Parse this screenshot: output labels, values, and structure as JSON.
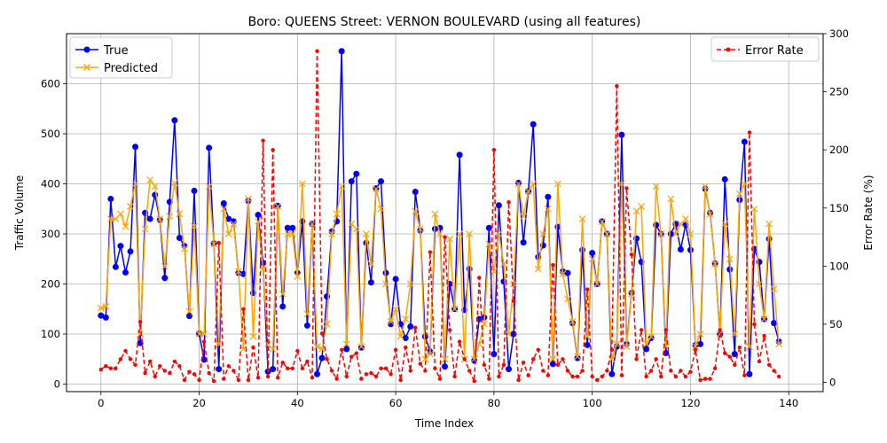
{
  "chart_data": {
    "type": "line",
    "title": "Boro: QUEENS Street: VERNON BOULEVARD (using all features)",
    "xlabel": "Time Index",
    "ylabel": "Traffic Volume",
    "y2label": "Error Rate (%)",
    "xlim": [
      -7,
      147
    ],
    "ylim": [
      -15,
      700
    ],
    "y2lim": [
      -8,
      300
    ],
    "x_ticks": [
      0,
      20,
      40,
      60,
      80,
      100,
      120,
      140
    ],
    "y_ticks": [
      0,
      100,
      200,
      300,
      400,
      500,
      600
    ],
    "y2_ticks": [
      0,
      50,
      100,
      150,
      200,
      250,
      300
    ],
    "grid": true,
    "legend_left": {
      "position": "upper-left",
      "entries": [
        "True",
        "Predicted"
      ]
    },
    "legend_right": {
      "position": "upper-right",
      "entries": [
        "Error Rate"
      ]
    },
    "colors": {
      "true": "#0000ff",
      "predicted": "#ffa500",
      "error": "#ff0000"
    },
    "series": [
      {
        "name": "True",
        "axis": "left",
        "style": "line-circle",
        "values": [
          137,
          133,
          370,
          234,
          276,
          223,
          265,
          474,
          82,
          342,
          330,
          378,
          328,
          212,
          364,
          527,
          292,
          276,
          136,
          386,
          101,
          49,
          472,
          281,
          30,
          361,
          330,
          325,
          222,
          220,
          366,
          182,
          338,
          242,
          25,
          30,
          356,
          155,
          312,
          312,
          222,
          325,
          117,
          320,
          20,
          52,
          175,
          305,
          325,
          665,
          70,
          405,
          420,
          73,
          282,
          203,
          391,
          405,
          222,
          120,
          210,
          120,
          92,
          115,
          384,
          307,
          95,
          65,
          310,
          312,
          35,
          200,
          150,
          458,
          148,
          230,
          47,
          130,
          133,
          312,
          60,
          357,
          205,
          30,
          100,
          402,
          283,
          385,
          519,
          254,
          277,
          374,
          40,
          314,
          225,
          222,
          122,
          52,
          268,
          78,
          262,
          200,
          325,
          300,
          20,
          75,
          498,
          80,
          182,
          291,
          244,
          70,
          92,
          318,
          300,
          62,
          300,
          320,
          269,
          318,
          268,
          78,
          80,
          390,
          342,
          241,
          100,
          409,
          229,
          60,
          368,
          484,
          20,
          270,
          244,
          130,
          290,
          122,
          85
        ]
      },
      {
        "name": "Predicted",
        "axis": "left",
        "style": "line-x",
        "values": [
          152,
          155,
          330,
          330,
          340,
          315,
          355,
          400,
          100,
          310,
          408,
          395,
          330,
          235,
          335,
          402,
          340,
          270,
          145,
          315,
          100,
          100,
          395,
          280,
          80,
          350,
          300,
          320,
          225,
          70,
          370,
          95,
          325,
          230,
          80,
          70,
          355,
          180,
          300,
          300,
          215,
          400,
          140,
          320,
          75,
          70,
          120,
          300,
          340,
          395,
          80,
          320,
          310,
          75,
          300,
          240,
          390,
          350,
          200,
          125,
          150,
          95,
          130,
          200,
          345,
          310,
          50,
          60,
          340,
          300,
          50,
          290,
          150,
          300,
          50,
          300,
          50,
          80,
          120,
          280,
          225,
          300,
          240,
          100,
          200,
          400,
          335,
          385,
          400,
          230,
          300,
          350,
          50,
          400,
          220,
          170,
          125,
          55,
          330,
          95,
          250,
          200,
          325,
          300,
          50,
          80,
          400,
          75,
          180,
          345,
          355,
          80,
          95,
          395,
          300,
          75,
          370,
          300,
          320,
          330,
          300,
          75,
          100,
          395,
          340,
          240,
          100,
          320,
          250,
          100,
          380,
          400,
          75,
          350,
          200,
          130,
          320,
          190,
          80
        ]
      },
      {
        "name": "Error Rate",
        "axis": "right",
        "style": "dashed-dot",
        "values": [
          11,
          14,
          12,
          12,
          20,
          27,
          20,
          15,
          52,
          8,
          18,
          5,
          14,
          10,
          8,
          18,
          14,
          2,
          9,
          7,
          2,
          35,
          8,
          1,
          120,
          3,
          14,
          10,
          2,
          63,
          2,
          30,
          4,
          208,
          5,
          200,
          4,
          17,
          12,
          12,
          27,
          12,
          18,
          4,
          285,
          42,
          20,
          10,
          3,
          28,
          5,
          22,
          25,
          3,
          7,
          8,
          5,
          12,
          12,
          7,
          28,
          2,
          30,
          10,
          47,
          16,
          10,
          112,
          12,
          3,
          125,
          45,
          5,
          35,
          20,
          10,
          1,
          90,
          15,
          3,
          200,
          5,
          15,
          155,
          70,
          2,
          17,
          6,
          20,
          28,
          10,
          6,
          101,
          15,
          20,
          10,
          5,
          5,
          10,
          80,
          5,
          2,
          5,
          10,
          28,
          255,
          6,
          167,
          110,
          20,
          45,
          5,
          10,
          20,
          5,
          45,
          10,
          5,
          10,
          5,
          9,
          28,
          2,
          3,
          3,
          12,
          45,
          25,
          22,
          15,
          30,
          6,
          215,
          50,
          18,
          40,
          15,
          10,
          5
        ]
      }
    ]
  }
}
